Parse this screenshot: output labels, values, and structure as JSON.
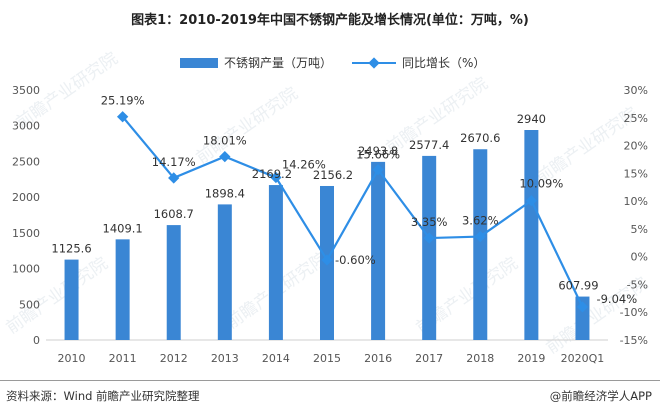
{
  "title": "图表1：2010-2019年中国不锈钢产能及增长情况(单位：万吨，%)",
  "chart_data": {
    "type": "bar+line",
    "categories": [
      "2010",
      "2011",
      "2012",
      "2013",
      "2014",
      "2015",
      "2016",
      "2017",
      "2018",
      "2019",
      "2020Q1"
    ],
    "series": [
      {
        "name": "不锈钢产量（万吨）",
        "type": "bar",
        "axis": "left",
        "color": "#3a86d4",
        "values": [
          1125.6,
          1409.1,
          1608.7,
          1898.4,
          2169.2,
          2156.2,
          2493.8,
          2577.4,
          2670.6,
          2940,
          607.99
        ],
        "labels": [
          "1125.6",
          "1409.1",
          "1608.7",
          "1898.4",
          "2169.2",
          "2156.2",
          "2493.8",
          "2577.4",
          "2670.6",
          "2940",
          "607.99"
        ]
      },
      {
        "name": "同比增长（%）",
        "type": "line",
        "axis": "right",
        "color": "#2e8ee6",
        "values": [
          null,
          25.19,
          14.17,
          18.01,
          14.26,
          -0.6,
          15.66,
          3.35,
          3.62,
          10.09,
          -9.04
        ],
        "labels": [
          "",
          "25.19%",
          "14.17%",
          "18.01%",
          "14.26%",
          "-0.60%",
          "15.66%",
          "3.35%",
          "3.62%",
          "10.09%",
          "-9.04%"
        ]
      }
    ],
    "y_left": {
      "min": 0,
      "max": 3500,
      "ticks": [
        "0",
        "500",
        "1000",
        "1500",
        "2000",
        "2500",
        "3000",
        "3500"
      ]
    },
    "y_right": {
      "min": -15,
      "max": 30,
      "ticks": [
        "-15%",
        "-10%",
        "-5%",
        "0%",
        "5%",
        "10%",
        "15%",
        "20%",
        "25%",
        "30%"
      ]
    },
    "grid": false,
    "legend": "top-center"
  },
  "footer": {
    "source": "资料来源：Wind 前瞻产业研究院整理",
    "brand": "@前瞻经济学人APP"
  },
  "watermark": "前瞻产业研究院"
}
